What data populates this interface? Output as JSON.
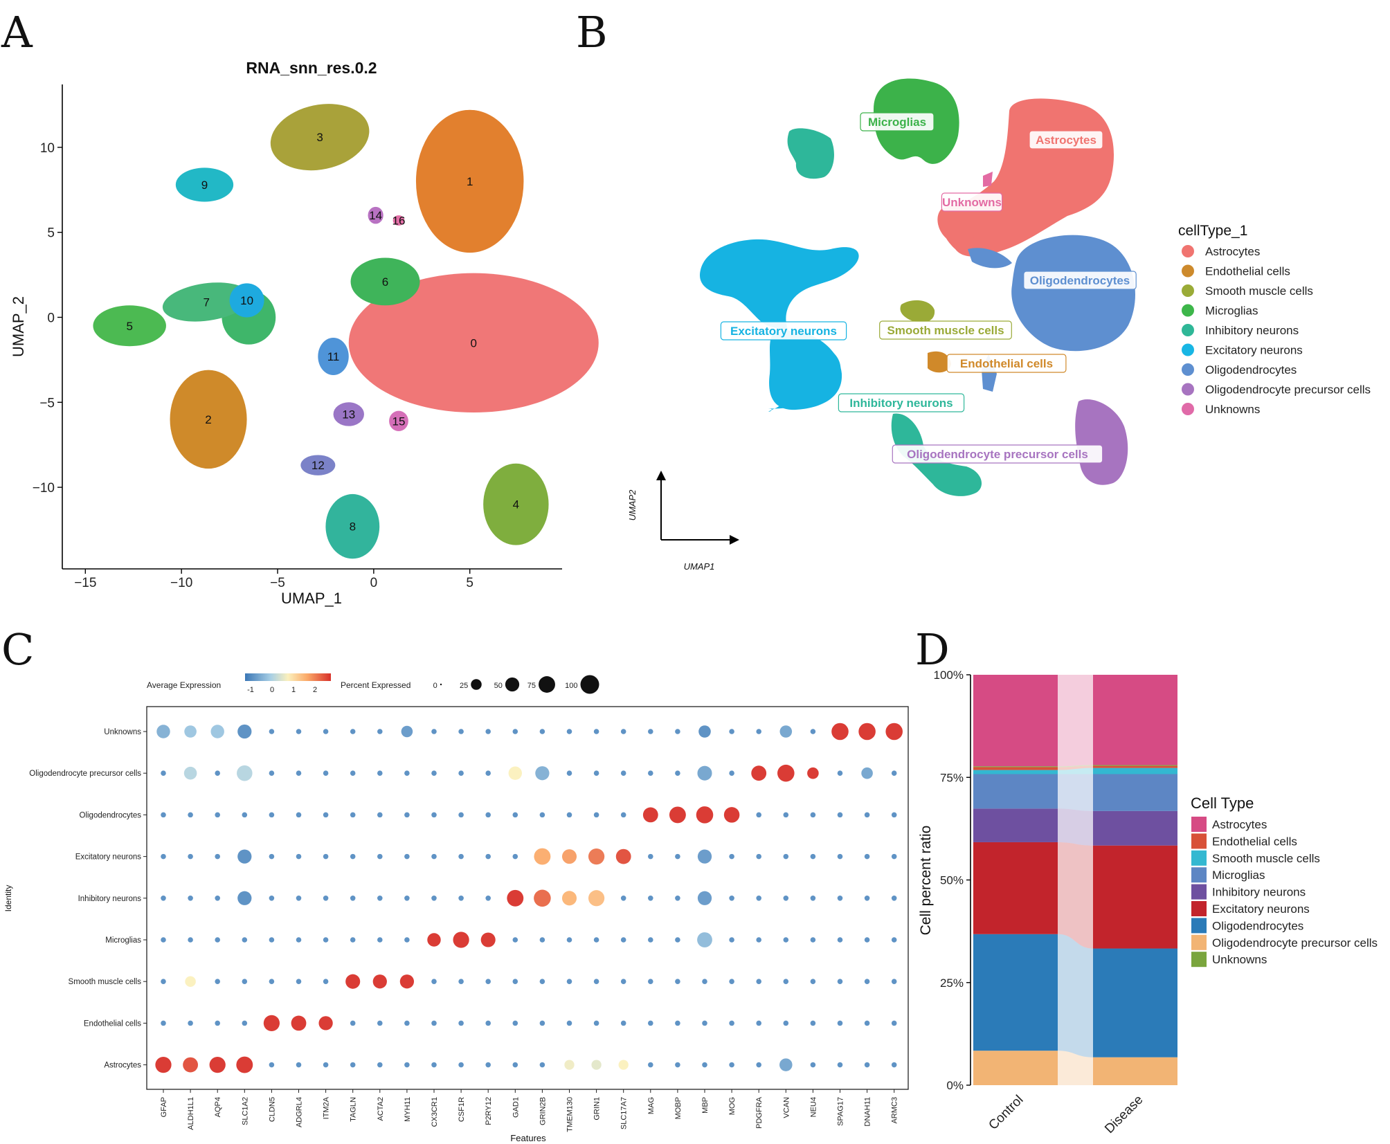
{
  "panels": {
    "a": "A",
    "b": "B",
    "c": "C",
    "d": "D"
  },
  "umap_a": {
    "title": "RNA_snn_res.0.2",
    "xlabel": "UMAP_1",
    "ylabel": "UMAP_2",
    "xticks": [
      -15,
      -10,
      -5,
      0,
      5
    ],
    "yticks": [
      -10,
      -5,
      0,
      5,
      10
    ],
    "xlim": [
      -16.2,
      9.8
    ],
    "ylim": [
      -14.8,
      13.7
    ],
    "clusters": [
      {
        "label": "0",
        "x": 5.2,
        "y": -1.5,
        "color": "#f07777"
      },
      {
        "label": "1",
        "x": 5.0,
        "y": 8.0,
        "color": "#e2802e"
      },
      {
        "label": "2",
        "x": -8.6,
        "y": -6.0,
        "color": "#cf8a2a"
      },
      {
        "label": "3",
        "x": -2.8,
        "y": 10.6,
        "color": "#a9a23a"
      },
      {
        "label": "4",
        "x": 7.4,
        "y": -11.0,
        "color": "#7fae3e"
      },
      {
        "label": "5",
        "x": -12.7,
        "y": -0.5,
        "color": "#4cba52"
      },
      {
        "label": "6",
        "x": 0.6,
        "y": 2.1,
        "color": "#3fb45a"
      },
      {
        "label": "7",
        "x": -8.7,
        "y": 0.9,
        "color": "#48b87b"
      },
      {
        "label": "8",
        "x": -1.1,
        "y": -12.3,
        "color": "#32b49c"
      },
      {
        "label": "9",
        "x": -8.8,
        "y": 7.8,
        "color": "#22b8c6"
      },
      {
        "label": "10",
        "x": -6.6,
        "y": 1.0,
        "color": "#1eaadf"
      },
      {
        "label": "11",
        "x": -2.1,
        "y": -2.3,
        "color": "#4f94d8"
      },
      {
        "label": "12",
        "x": -2.9,
        "y": -8.7,
        "color": "#7b82c8"
      },
      {
        "label": "13",
        "x": -1.3,
        "y": -5.7,
        "color": "#9a76c6"
      },
      {
        "label": "14",
        "x": 0.1,
        "y": 6.0,
        "color": "#b872c2"
      },
      {
        "label": "15",
        "x": 1.3,
        "y": -6.1,
        "color": "#d56fb8"
      },
      {
        "label": "16",
        "x": 1.3,
        "y": 5.7,
        "color": "#e36fa7"
      }
    ]
  },
  "umap_b": {
    "axis_x": "UMAP1",
    "axis_y": "UMAP2",
    "legend_title": "cellType_1",
    "labels": [
      {
        "name": "Microglias",
        "color": "#3cb24a"
      },
      {
        "name": "Astrocytes",
        "color": "#f07470"
      },
      {
        "name": "Unknowns",
        "color": "#e36ba3"
      },
      {
        "name": "Oligodendrocytes",
        "color": "#5e8fd0"
      },
      {
        "name": "Excitatory neurons",
        "color": "#16b3e2"
      },
      {
        "name": "Smooth muscle cells",
        "color": "#9aaa37"
      },
      {
        "name": "Endothelial cells",
        "color": "#d0892a"
      },
      {
        "name": "Inhibitory neurons",
        "color": "#2eb79a"
      },
      {
        "name": "Oligodendrocyte precursor cells",
        "color": "#a774c0"
      }
    ],
    "legend": [
      {
        "name": "Astrocytes",
        "color": "#f07470"
      },
      {
        "name": "Endothelial cells",
        "color": "#cd8a2c"
      },
      {
        "name": "Smooth muscle cells",
        "color": "#9aab37"
      },
      {
        "name": "Microglias",
        "color": "#3db64a"
      },
      {
        "name": "Inhibitory neurons",
        "color": "#2fb797"
      },
      {
        "name": "Excitatory neurons",
        "color": "#18b6e4"
      },
      {
        "name": "Oligodendrocytes",
        "color": "#5e8fd0"
      },
      {
        "name": "Oligodendrocyte precursor cells",
        "color": "#a774c0"
      },
      {
        "name": "Unknowns",
        "color": "#e06aa8"
      }
    ]
  },
  "chart_data": [
    {
      "type": "dotplot",
      "xlabel": "Features",
      "ylabel": "Identity",
      "legend_expr_title": "Average Expression",
      "legend_expr_ticks": [
        "-1",
        "0",
        "1",
        "2"
      ],
      "legend_pct_title": "Percent Expressed",
      "legend_pct_values": [
        0,
        25,
        50,
        75,
        100
      ],
      "features": [
        "GFAP",
        "ALDH1L1",
        "AQP4",
        "SLC1A2",
        "CLDN5",
        "ADGRL4",
        "ITM2A",
        "TAGLN",
        "ACTA2",
        "MYH11",
        "CX3CR1",
        "CSF1R",
        "P2RY12",
        "GAD1",
        "GRIN2B",
        "TMEM130",
        "GRIN1",
        "SLC17A7",
        "MAG",
        "MOBP",
        "MBP",
        "MOG",
        "PDGFRA",
        "VCAN",
        "NEU4",
        "SPAG17",
        "DNAH11",
        "ARMC3"
      ],
      "identities": [
        "Unknowns",
        "Oligodendrocyte precursor cells",
        "Oligodendrocytes",
        "Excitatory neurons",
        "Inhibitory neurons",
        "Microglias",
        "Smooth muscle cells",
        "Endothelial cells",
        "Astrocytes"
      ],
      "highlights": [
        {
          "identity": "Unknowns",
          "feature": "SPAG17",
          "expr": 2.2,
          "pct": 80
        },
        {
          "identity": "Unknowns",
          "feature": "DNAH11",
          "expr": 2.2,
          "pct": 80
        },
        {
          "identity": "Unknowns",
          "feature": "ARMC3",
          "expr": 2.2,
          "pct": 80
        },
        {
          "identity": "Unknowns",
          "feature": "GFAP",
          "expr": -0.5,
          "pct": 45
        },
        {
          "identity": "Unknowns",
          "feature": "ALDH1L1",
          "expr": -0.3,
          "pct": 35
        },
        {
          "identity": "Unknowns",
          "feature": "AQP4",
          "expr": -0.3,
          "pct": 45
        },
        {
          "identity": "Unknowns",
          "feature": "SLC1A2",
          "expr": -0.8,
          "pct": 50
        },
        {
          "identity": "Unknowns",
          "feature": "MBP",
          "expr": -0.8,
          "pct": 35
        },
        {
          "identity": "Unknowns",
          "feature": "VCAN",
          "expr": -0.6,
          "pct": 35
        },
        {
          "identity": "Unknowns",
          "feature": "MYH11",
          "expr": -0.7,
          "pct": 30
        },
        {
          "identity": "Oligodendrocyte precursor cells",
          "feature": "PDGFRA",
          "expr": 2.2,
          "pct": 60
        },
        {
          "identity": "Oligodendrocyte precursor cells",
          "feature": "VCAN",
          "expr": 2.2,
          "pct": 80
        },
        {
          "identity": "Oligodendrocyte precursor cells",
          "feature": "NEU4",
          "expr": 2.2,
          "pct": 30
        },
        {
          "identity": "Oligodendrocyte precursor cells",
          "feature": "GAD1",
          "expr": 0.5,
          "pct": 45
        },
        {
          "identity": "Oligodendrocyte precursor cells",
          "feature": "GRIN2B",
          "expr": -0.5,
          "pct": 50
        },
        {
          "identity": "Oligodendrocyte precursor cells",
          "feature": "SLC1A2",
          "expr": -0.1,
          "pct": 65
        },
        {
          "identity": "Oligodendrocyte precursor cells",
          "feature": "ALDH1L1",
          "expr": -0.1,
          "pct": 40
        },
        {
          "identity": "Oligodendrocyte precursor cells",
          "feature": "MBP",
          "expr": -0.6,
          "pct": 55
        },
        {
          "identity": "Oligodendrocyte precursor cells",
          "feature": "DNAH11",
          "expr": -0.6,
          "pct": 30
        },
        {
          "identity": "Oligodendrocytes",
          "feature": "MAG",
          "expr": 2.2,
          "pct": 60
        },
        {
          "identity": "Oligodendrocytes",
          "feature": "MOBP",
          "expr": 2.2,
          "pct": 75
        },
        {
          "identity": "Oligodendrocytes",
          "feature": "MBP",
          "expr": 2.2,
          "pct": 80
        },
        {
          "identity": "Oligodendrocytes",
          "feature": "MOG",
          "expr": 2.2,
          "pct": 65
        },
        {
          "identity": "Excitatory neurons",
          "feature": "GRIN2B",
          "expr": 1.3,
          "pct": 75
        },
        {
          "identity": "Excitatory neurons",
          "feature": "TMEM130",
          "expr": 1.4,
          "pct": 55
        },
        {
          "identity": "Excitatory neurons",
          "feature": "GRIN1",
          "expr": 1.7,
          "pct": 70
        },
        {
          "identity": "Excitatory neurons",
          "feature": "SLC17A7",
          "expr": 2.0,
          "pct": 60
        },
        {
          "identity": "Excitatory neurons",
          "feature": "MBP",
          "expr": -0.7,
          "pct": 50
        },
        {
          "identity": "Excitatory neurons",
          "feature": "SLC1A2",
          "expr": -0.8,
          "pct": 50
        },
        {
          "identity": "Inhibitory neurons",
          "feature": "GAD1",
          "expr": 2.2,
          "pct": 75
        },
        {
          "identity": "Inhibitory neurons",
          "feature": "GRIN2B",
          "expr": 1.8,
          "pct": 80
        },
        {
          "identity": "Inhibitory neurons",
          "feature": "TMEM130",
          "expr": 1.2,
          "pct": 55
        },
        {
          "identity": "Inhibitory neurons",
          "feature": "GRIN1",
          "expr": 1.1,
          "pct": 70
        },
        {
          "identity": "Inhibitory neurons",
          "feature": "MBP",
          "expr": -0.7,
          "pct": 50
        },
        {
          "identity": "Inhibitory neurons",
          "feature": "SLC1A2",
          "expr": -0.8,
          "pct": 50
        },
        {
          "identity": "Microglias",
          "feature": "CX3CR1",
          "expr": 2.2,
          "pct": 45
        },
        {
          "identity": "Microglias",
          "feature": "CSF1R",
          "expr": 2.2,
          "pct": 70
        },
        {
          "identity": "Microglias",
          "feature": "P2RY12",
          "expr": 2.2,
          "pct": 55
        },
        {
          "identity": "Microglias",
          "feature": "MBP",
          "expr": -0.4,
          "pct": 60
        },
        {
          "identity": "Smooth muscle cells",
          "feature": "TAGLN",
          "expr": 2.2,
          "pct": 55
        },
        {
          "identity": "Smooth muscle cells",
          "feature": "ACTA2",
          "expr": 2.2,
          "pct": 50
        },
        {
          "identity": "Smooth muscle cells",
          "feature": "MYH11",
          "expr": 2.2,
          "pct": 50
        },
        {
          "identity": "Smooth muscle cells",
          "feature": "ALDH1L1",
          "expr": 0.5,
          "pct": 25
        },
        {
          "identity": "Endothelial cells",
          "feature": "CLDN5",
          "expr": 2.2,
          "pct": 70
        },
        {
          "identity": "Endothelial cells",
          "feature": "ADGRL4",
          "expr": 2.2,
          "pct": 60
        },
        {
          "identity": "Endothelial cells",
          "feature": "ITM2A",
          "expr": 2.2,
          "pct": 50
        },
        {
          "identity": "Astrocytes",
          "feature": "GFAP",
          "expr": 2.2,
          "pct": 70
        },
        {
          "identity": "Astrocytes",
          "feature": "ALDH1L1",
          "expr": 2.0,
          "pct": 60
        },
        {
          "identity": "Astrocytes",
          "feature": "AQP4",
          "expr": 2.2,
          "pct": 70
        },
        {
          "identity": "Astrocytes",
          "feature": "SLC1A2",
          "expr": 2.2,
          "pct": 75
        },
        {
          "identity": "Astrocytes",
          "feature": "VCAN",
          "expr": -0.6,
          "pct": 40
        },
        {
          "identity": "Astrocytes",
          "feature": "TMEM130",
          "expr": 0.4,
          "pct": 20
        },
        {
          "identity": "Astrocytes",
          "feature": "GRIN1",
          "expr": 0.3,
          "pct": 20
        },
        {
          "identity": "Astrocytes",
          "feature": "SLC17A7",
          "expr": 0.5,
          "pct": 20
        }
      ],
      "baseline": {
        "expr": -0.8,
        "pct": 18
      }
    },
    {
      "type": "stacked_bar",
      "ylabel": "Cell percent ratio",
      "yticks": [
        "0%",
        "25%",
        "50%",
        "75%",
        "100%"
      ],
      "categories": [
        "Control",
        "Disease"
      ],
      "legend_title": "Cell Type",
      "series": [
        {
          "name": "Oligodendrocyte precursor cells",
          "color": "#f2b474",
          "values": [
            8.4,
            6.8
          ]
        },
        {
          "name": "Oligodendrocytes",
          "color": "#2b7bb8",
          "values": [
            28.4,
            26.5
          ]
        },
        {
          "name": "Excitatory neurons",
          "color": "#c2242c",
          "values": [
            22.4,
            25.1
          ]
        },
        {
          "name": "Inhibitory neurons",
          "color": "#6e50a0",
          "values": [
            8.2,
            8.4
          ]
        },
        {
          "name": "Microglias",
          "color": "#5d86c4",
          "values": [
            8.4,
            9.0
          ]
        },
        {
          "name": "Smooth muscle cells",
          "color": "#33b8d1",
          "values": [
            1.0,
            1.5
          ]
        },
        {
          "name": "Endothelial cells",
          "color": "#d85138",
          "values": [
            0.7,
            0.5
          ]
        },
        {
          "name": "Unknowns",
          "color": "#7aa53d",
          "values": [
            0.2,
            0.2
          ]
        },
        {
          "name": "Astrocytes",
          "color": "#d64b84",
          "values": [
            22.3,
            22.0
          ]
        }
      ],
      "legend_order": [
        "Astrocytes",
        "Endothelial cells",
        "Smooth muscle cells",
        "Microglias",
        "Inhibitory neurons",
        "Excitatory neurons",
        "Oligodendrocytes",
        "Oligodendrocyte precursor cells",
        "Unknowns"
      ]
    }
  ]
}
